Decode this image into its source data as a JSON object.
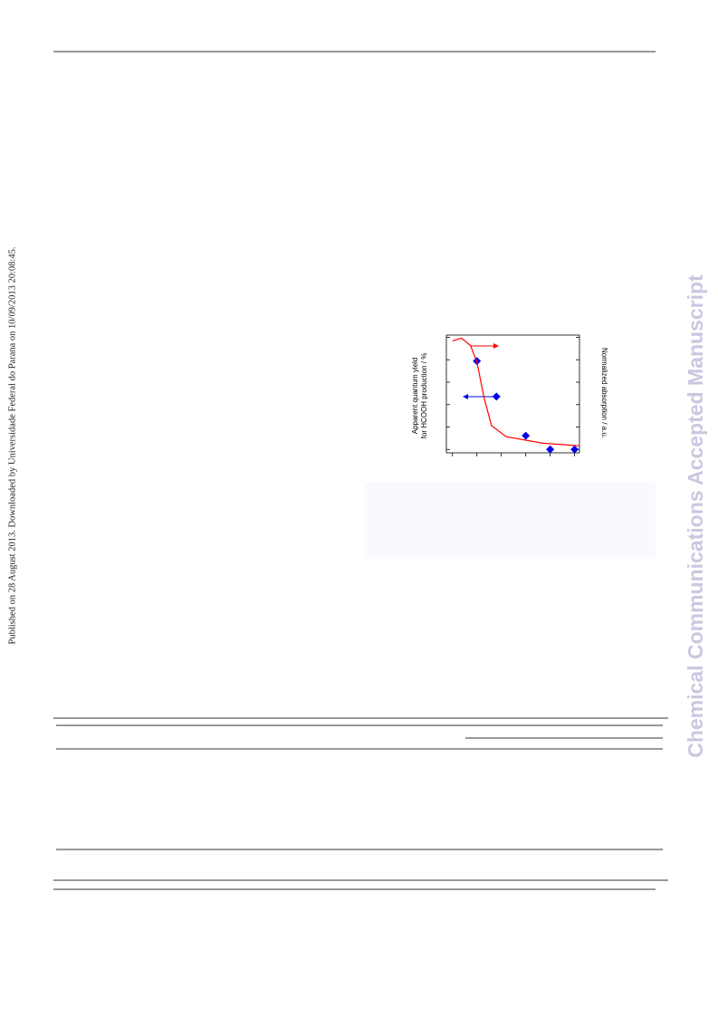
{
  "side_note": "Published on 28 August 2013. Downloaded by Universidade Federal do Parana on 10/09/2013 20:08:45.",
  "watermark": "Chemical Communications Accepted Manuscript",
  "chart_data": {
    "type": "scatter",
    "ylabel": [
      "Apparent quantum yield",
      "for HCOOH production / %"
    ],
    "y2label": "Normalized absorption / a.u.",
    "xlim": [
      -0.25,
      5.2
    ],
    "ylim": [
      -0.15,
      5.1
    ],
    "y2lim": [
      -0.15,
      5.1
    ],
    "xticks": [
      0,
      1,
      2,
      3,
      4,
      5
    ],
    "yticks": [
      0,
      1,
      2,
      3,
      4,
      5
    ],
    "y2ticks": [
      0,
      1,
      2,
      3,
      4,
      5
    ],
    "series": [
      {
        "type": "scatter",
        "color": "#0000ee",
        "x": [
          1,
          1.8,
          3,
          4,
          5
        ],
        "y": [
          3.94,
          2.36,
          0.61,
          0,
          0
        ]
      },
      {
        "type": "line",
        "color": "#ff0000",
        "axis": "y2",
        "x": [
          0,
          0.37,
          0.74,
          1,
          1.3,
          1.6,
          2.2,
          3.7,
          5.2
        ],
        "y": [
          4.84,
          4.96,
          4.63,
          3.9,
          2.28,
          1.06,
          0.57,
          0.28,
          0.16
        ]
      }
    ]
  }
}
